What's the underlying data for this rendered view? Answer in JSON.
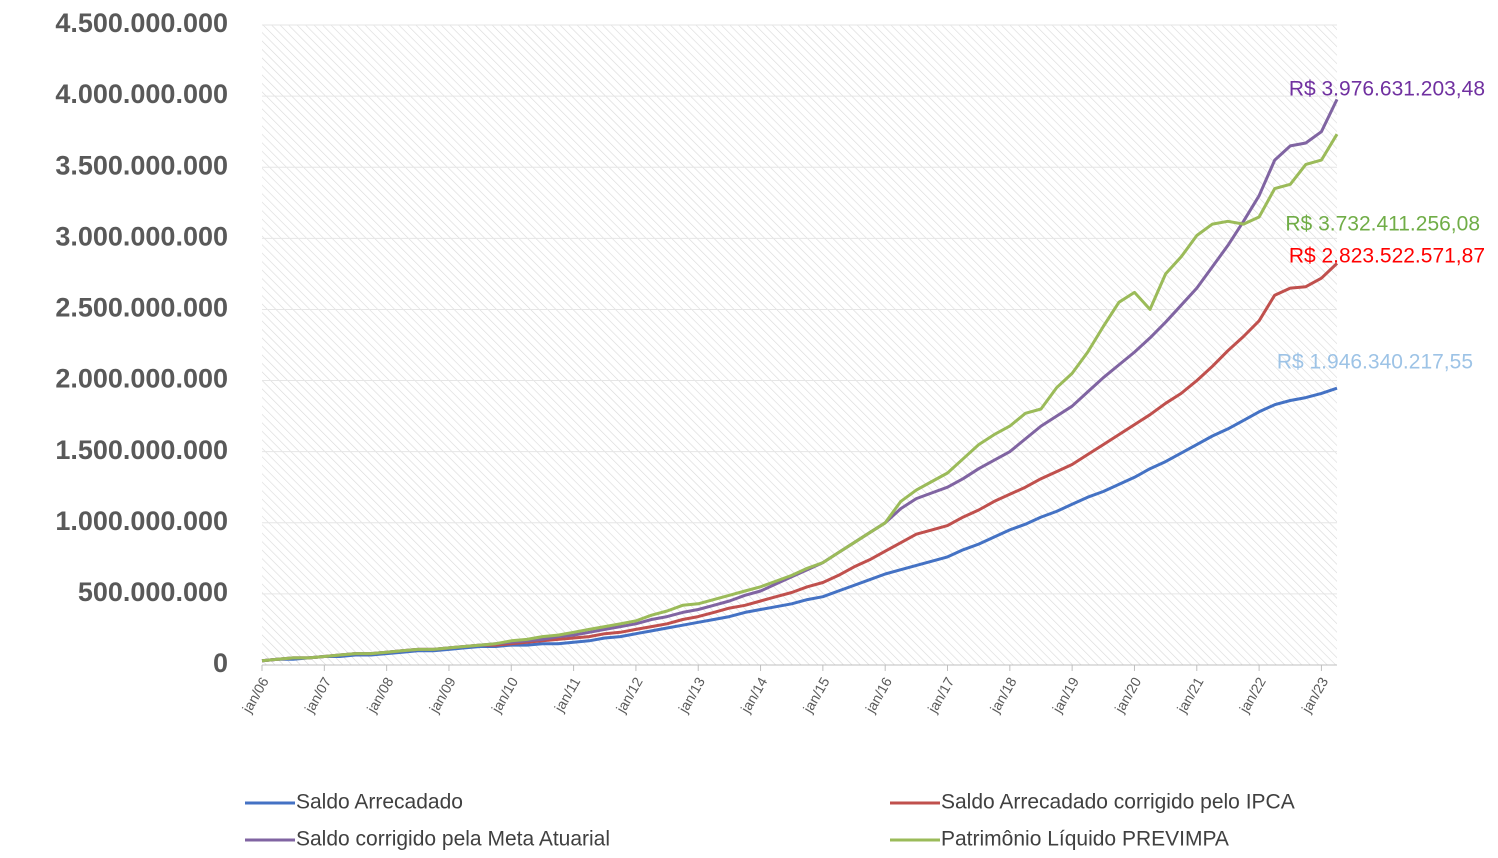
{
  "chart_data": {
    "type": "line",
    "categories": [
      "jan/06",
      null,
      null,
      null,
      "jan/07",
      null,
      null,
      null,
      "jan/08",
      null,
      null,
      null,
      "jan/09",
      null,
      null,
      null,
      "jan/10",
      null,
      null,
      null,
      "jan/11",
      null,
      null,
      null,
      "jan/12",
      null,
      null,
      null,
      "jan/13",
      null,
      null,
      null,
      "jan/14",
      null,
      null,
      null,
      "jan/15",
      null,
      null,
      null,
      "jan/16",
      null,
      null,
      null,
      "jan/17",
      null,
      null,
      null,
      "jan/18",
      null,
      null,
      null,
      "jan/19",
      null,
      null,
      null,
      "jan/20",
      null,
      null,
      null,
      "jan/21",
      null,
      null,
      null,
      "jan/22",
      null,
      null,
      null,
      "jan/23",
      null
    ],
    "ylim": [
      0,
      4500000000
    ],
    "yticks": [
      0,
      {
        "value": 500000000,
        "label": "500.000.000"
      },
      {
        "value": 1000000000,
        "label": "1.000.000.000"
      },
      {
        "value": 1500000000,
        "label": "1.500.000.000"
      },
      {
        "value": 2000000000,
        "label": "2.000.000.000"
      },
      {
        "value": 2500000000,
        "label": "2.500.000.000"
      },
      {
        "value": 3000000000,
        "label": "3.000.000.000"
      },
      {
        "value": 3500000000,
        "label": "3.500.000.000"
      },
      {
        "value": 4000000000,
        "label": "4.000.000.000"
      },
      {
        "value": 4500000000,
        "label": "4.500.000.000"
      }
    ],
    "grid": true,
    "legend": "bottom",
    "series": [
      {
        "name": "Saldo Arrecadado",
        "color": "#4472c4",
        "label_color": "#9dc3e6",
        "values": [
          30000000.0,
          40000000.0,
          40000000.0,
          50000000.0,
          60000000.0,
          60000000.0,
          70000000.0,
          70000000.0,
          80000000.0,
          90000000.0,
          100000000.0,
          100000000.0,
          110000000.0,
          120000000.0,
          130000000.0,
          130000000.0,
          140000000.0,
          140000000.0,
          150000000.0,
          150000000.0,
          160000000.0,
          170000000.0,
          190000000.0,
          200000000.0,
          220000000.0,
          240000000.0,
          260000000.0,
          280000000.0,
          300000000.0,
          320000000.0,
          340000000.0,
          370000000.0,
          390000000.0,
          410000000.0,
          430000000.0,
          460000000.0,
          480000000.0,
          520000000.0,
          560000000.0,
          600000000.0,
          640000000.0,
          670000000.0,
          700000000.0,
          730000000.0,
          760000000.0,
          810000000.0,
          850000000.0,
          900000000.0,
          950000000.0,
          990000000.0,
          1040000000.0,
          1080000000.0,
          1130000000.0,
          1180000000.0,
          1220000000.0,
          1270000000.0,
          1320000000.0,
          1380000000.0,
          1430000000.0,
          1490000000.0,
          1550000000.0,
          1610000000.0,
          1660000000.0,
          1720000000.0,
          1780000000.0,
          1830000000.0,
          1860000000.0,
          1880000000.0,
          1910000000.0,
          1946340217.55
        ],
        "value_labels": [
          null,
          null,
          null,
          null,
          null,
          null,
          null,
          null,
          null,
          null,
          null,
          null,
          null,
          null,
          null,
          null,
          null,
          null,
          null,
          null,
          null,
          null,
          null,
          null,
          null,
          null,
          null,
          null,
          null,
          null,
          null,
          null,
          null,
          null,
          null,
          null,
          null,
          null,
          null,
          null,
          null,
          null,
          null,
          null,
          null,
          null,
          null,
          null,
          null,
          null,
          null,
          null,
          null,
          null,
          null,
          null,
          null,
          null,
          null,
          null,
          null,
          null,
          null,
          null,
          null,
          null,
          null,
          null,
          null,
          "R$ 1.946.340.217,55"
        ]
      },
      {
        "name": "Saldo Arrecadado corrigido pelo IPCA",
        "color": "#c0504d",
        "label_color": "#ff0000",
        "values": [
          30000000.0,
          40000000.0,
          50000000.0,
          50000000.0,
          60000000.0,
          70000000.0,
          80000000.0,
          80000000.0,
          90000000.0,
          100000000.0,
          110000000.0,
          110000000.0,
          120000000.0,
          130000000.0,
          140000000.0,
          140000000.0,
          150000000.0,
          160000000.0,
          170000000.0,
          180000000.0,
          190000000.0,
          200000000.0,
          220000000.0,
          230000000.0,
          250000000.0,
          270000000.0,
          290000000.0,
          320000000.0,
          340000000.0,
          370000000.0,
          400000000.0,
          420000000.0,
          450000000.0,
          480000000.0,
          510000000.0,
          550000000.0,
          580000000.0,
          630000000.0,
          690000000.0,
          740000000.0,
          800000000.0,
          860000000.0,
          920000000.0,
          950000000.0,
          980000000.0,
          1040000000.0,
          1090000000.0,
          1150000000.0,
          1200000000.0,
          1250000000.0,
          1310000000.0,
          1360000000.0,
          1410000000.0,
          1480000000.0,
          1550000000.0,
          1620000000.0,
          1690000000.0,
          1760000000.0,
          1840000000.0,
          1910000000.0,
          2000000000.0,
          2100000000.0,
          2210000000.0,
          2310000000.0,
          2420000000.0,
          2600000000.0,
          2650000000.0,
          2660000000.0,
          2720000000.0,
          2823522571.87
        ],
        "value_labels": [
          null,
          null,
          null,
          null,
          null,
          null,
          null,
          null,
          null,
          null,
          null,
          null,
          null,
          null,
          null,
          null,
          null,
          null,
          null,
          null,
          null,
          null,
          null,
          null,
          null,
          null,
          null,
          null,
          null,
          null,
          null,
          null,
          null,
          null,
          null,
          null,
          null,
          null,
          null,
          null,
          null,
          null,
          null,
          null,
          null,
          null,
          null,
          null,
          null,
          null,
          null,
          null,
          null,
          null,
          null,
          null,
          null,
          null,
          null,
          null,
          null,
          null,
          null,
          null,
          null,
          null,
          null,
          null,
          null,
          "R$ 2.823.522.571,87"
        ]
      },
      {
        "name": "Saldo corrigido pela Meta Atuarial",
        "color": "#8064a2",
        "label_color": "#7030a0",
        "values": [
          30000000.0,
          40000000.0,
          50000000.0,
          50000000.0,
          60000000.0,
          70000000.0,
          80000000.0,
          80000000.0,
          90000000.0,
          100000000.0,
          110000000.0,
          110000000.0,
          120000000.0,
          130000000.0,
          140000000.0,
          150000000.0,
          160000000.0,
          170000000.0,
          180000000.0,
          200000000.0,
          210000000.0,
          230000000.0,
          250000000.0,
          270000000.0,
          290000000.0,
          320000000.0,
          340000000.0,
          370000000.0,
          390000000.0,
          420000000.0,
          450000000.0,
          490000000.0,
          520000000.0,
          570000000.0,
          620000000.0,
          670000000.0,
          720000000.0,
          790000000.0,
          860000000.0,
          930000000.0,
          1000000000.0,
          1100000000.0,
          1170000000.0,
          1210000000.0,
          1250000000.0,
          1310000000.0,
          1380000000.0,
          1440000000.0,
          1500000000.0,
          1590000000.0,
          1680000000.0,
          1750000000.0,
          1820000000.0,
          1920000000.0,
          2020000000.0,
          2110000000.0,
          2200000000.0,
          2300000000.0,
          2410000000.0,
          2530000000.0,
          2650000000.0,
          2800000000.0,
          2950000000.0,
          3120000000.0,
          3300000000.0,
          3550000000.0,
          3650000000.0,
          3670000000.0,
          3750000000.0,
          3976631203.48
        ],
        "value_labels": [
          null,
          null,
          null,
          null,
          null,
          null,
          null,
          null,
          null,
          null,
          null,
          null,
          null,
          null,
          null,
          null,
          null,
          null,
          null,
          null,
          null,
          null,
          null,
          null,
          null,
          null,
          null,
          null,
          null,
          null,
          null,
          null,
          null,
          null,
          null,
          null,
          null,
          null,
          null,
          null,
          null,
          null,
          null,
          null,
          null,
          null,
          null,
          null,
          null,
          null,
          null,
          null,
          null,
          null,
          null,
          null,
          null,
          null,
          null,
          null,
          null,
          null,
          null,
          null,
          null,
          null,
          null,
          null,
          null,
          "R$ 3.976.631.203,48"
        ]
      },
      {
        "name": "Patrimônio Líquido PREVIMPA",
        "color": "#9bbb59",
        "label_color": "#70ad47",
        "values": [
          30000000.0,
          40000000.0,
          50000000.0,
          50000000.0,
          60000000.0,
          70000000.0,
          80000000.0,
          80000000.0,
          90000000.0,
          100000000.0,
          110000000.0,
          110000000.0,
          120000000.0,
          130000000.0,
          140000000.0,
          150000000.0,
          170000000.0,
          180000000.0,
          200000000.0,
          210000000.0,
          230000000.0,
          250000000.0,
          270000000.0,
          290000000.0,
          310000000.0,
          350000000.0,
          380000000.0,
          420000000.0,
          430000000.0,
          460000000.0,
          490000000.0,
          520000000.0,
          550000000.0,
          590000000.0,
          630000000.0,
          680000000.0,
          720000000.0,
          790000000.0,
          860000000.0,
          930000000.0,
          1000000000.0,
          1150000000.0,
          1230000000.0,
          1290000000.0,
          1350000000.0,
          1450000000.0,
          1550000000.0,
          1620000000.0,
          1680000000.0,
          1770000000.0,
          1800000000.0,
          1950000000.0,
          2050000000.0,
          2200000000.0,
          2380000000.0,
          2550000000.0,
          2620000000.0,
          2500000000.0,
          2750000000.0,
          2870000000.0,
          3020000000.0,
          3100000000.0,
          3120000000.0,
          3100000000.0,
          3150000000.0,
          3350000000.0,
          3380000000.0,
          3520000000.0,
          3550000000.0,
          3732411256.08
        ],
        "value_labels": [
          null,
          null,
          null,
          null,
          null,
          null,
          null,
          null,
          null,
          null,
          null,
          null,
          null,
          null,
          null,
          null,
          null,
          null,
          null,
          null,
          null,
          null,
          null,
          null,
          null,
          null,
          null,
          null,
          null,
          null,
          null,
          null,
          null,
          null,
          null,
          null,
          null,
          null,
          null,
          null,
          null,
          null,
          null,
          null,
          null,
          null,
          null,
          null,
          null,
          null,
          null,
          null,
          null,
          null,
          null,
          null,
          null,
          null,
          null,
          null,
          null,
          null,
          null,
          null,
          null,
          null,
          null,
          null,
          null,
          "R$ 3.732.411.256,08"
        ]
      }
    ]
  }
}
